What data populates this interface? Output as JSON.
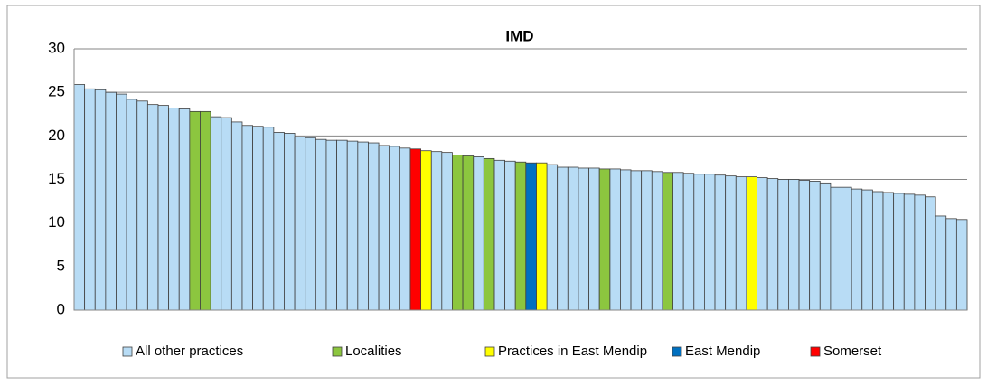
{
  "chart_data": {
    "type": "bar",
    "title": "IMD",
    "ylim": [
      0,
      30
    ],
    "yticks": [
      0,
      5,
      10,
      15,
      20,
      25,
      30
    ],
    "grid": true,
    "legend": "bottom",
    "series": [
      {
        "name": "All other practices",
        "color": "#b8dcf5",
        "values": [
          25.9,
          25.4,
          25.3,
          25.0,
          24.8,
          24.2,
          24.0,
          23.6,
          23.5,
          23.2,
          23.1,
          null,
          null,
          22.2,
          22.1,
          21.6,
          21.2,
          21.1,
          21.0,
          20.4,
          20.3,
          19.9,
          19.8,
          19.6,
          19.5,
          19.5,
          19.4,
          19.3,
          19.2,
          18.9,
          18.8,
          18.6,
          null,
          null,
          18.2,
          18.1,
          null,
          null,
          17.6,
          null,
          17.2,
          17.1,
          null,
          null,
          null,
          16.7,
          16.4,
          16.4,
          16.3,
          16.3,
          null,
          16.2,
          16.1,
          16.0,
          16.0,
          15.9,
          null,
          15.8,
          15.7,
          15.6,
          15.6,
          15.5,
          15.4,
          15.3,
          null,
          15.2,
          15.1,
          15.0,
          15.0,
          14.9,
          14.8,
          14.6,
          14.1,
          14.1,
          13.9,
          13.8,
          13.6,
          13.5,
          13.4,
          13.3,
          13.2,
          13.0,
          10.8,
          10.5,
          10.4
        ]
      },
      {
        "name": "Localities",
        "color": "#8cc63f",
        "values": [
          null,
          null,
          null,
          null,
          null,
          null,
          null,
          null,
          null,
          null,
          null,
          22.8,
          22.8,
          null,
          null,
          null,
          null,
          null,
          null,
          null,
          null,
          null,
          null,
          null,
          null,
          null,
          null,
          null,
          null,
          null,
          null,
          null,
          null,
          null,
          null,
          null,
          17.8,
          17.7,
          null,
          17.4,
          null,
          null,
          17.0,
          null,
          null,
          null,
          null,
          null,
          null,
          null,
          16.2,
          null,
          null,
          null,
          null,
          null,
          15.8,
          null,
          null,
          null,
          null,
          null,
          null,
          null,
          null,
          null,
          null,
          null,
          null,
          null,
          null,
          null,
          null,
          null,
          null,
          null,
          null,
          null,
          null,
          null,
          null,
          null,
          null,
          null,
          null
        ]
      },
      {
        "name": "Practices in East Mendip",
        "color": "#ffff00",
        "values": [
          null,
          null,
          null,
          null,
          null,
          null,
          null,
          null,
          null,
          null,
          null,
          null,
          null,
          null,
          null,
          null,
          null,
          null,
          null,
          null,
          null,
          null,
          null,
          null,
          null,
          null,
          null,
          null,
          null,
          null,
          null,
          null,
          null,
          18.3,
          null,
          null,
          null,
          null,
          null,
          null,
          null,
          null,
          null,
          null,
          16.9,
          null,
          null,
          null,
          null,
          null,
          null,
          null,
          null,
          null,
          null,
          null,
          null,
          null,
          null,
          null,
          null,
          null,
          null,
          null,
          15.3,
          null,
          null,
          null,
          null,
          null,
          null,
          null,
          null,
          null,
          null,
          null,
          null,
          null,
          null,
          null,
          null,
          null,
          null,
          null,
          null
        ]
      },
      {
        "name": "East Mendip",
        "color": "#0070c0",
        "values": [
          null,
          null,
          null,
          null,
          null,
          null,
          null,
          null,
          null,
          null,
          null,
          null,
          null,
          null,
          null,
          null,
          null,
          null,
          null,
          null,
          null,
          null,
          null,
          null,
          null,
          null,
          null,
          null,
          null,
          null,
          null,
          null,
          null,
          null,
          null,
          null,
          null,
          null,
          null,
          null,
          null,
          null,
          null,
          16.9,
          null,
          null,
          null,
          null,
          null,
          null,
          null,
          null,
          null,
          null,
          null,
          null,
          null,
          null,
          null,
          null,
          null,
          null,
          null,
          null,
          null,
          null,
          null,
          null,
          null,
          null,
          null,
          null,
          null,
          null,
          null,
          null,
          null,
          null,
          null,
          null,
          null,
          null,
          null,
          null,
          null
        ]
      },
      {
        "name": "Somerset",
        "color": "#ff0000",
        "values": [
          null,
          null,
          null,
          null,
          null,
          null,
          null,
          null,
          null,
          null,
          null,
          null,
          null,
          null,
          null,
          null,
          null,
          null,
          null,
          null,
          null,
          null,
          null,
          null,
          null,
          null,
          null,
          null,
          null,
          null,
          null,
          null,
          18.5,
          null,
          null,
          null,
          null,
          null,
          null,
          null,
          null,
          null,
          null,
          null,
          null,
          null,
          null,
          null,
          null,
          null,
          null,
          null,
          null,
          null,
          null,
          null,
          null,
          null,
          null,
          null,
          null,
          null,
          null,
          null,
          null,
          null,
          null,
          null,
          null,
          null,
          null,
          null,
          null,
          null,
          null,
          null,
          null,
          null,
          null,
          null,
          null,
          null,
          null,
          null,
          null
        ]
      }
    ]
  }
}
